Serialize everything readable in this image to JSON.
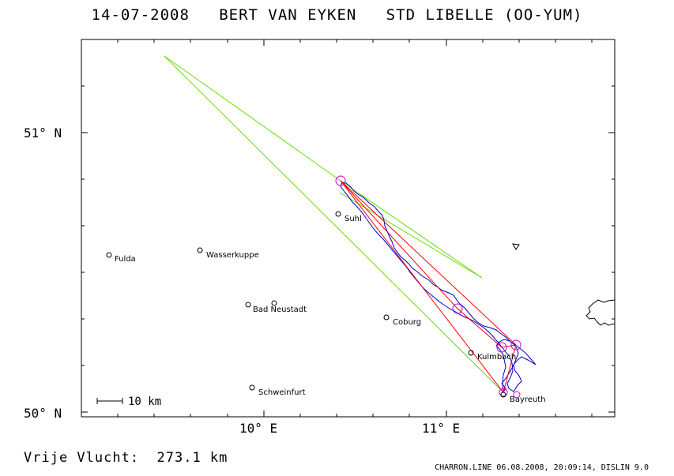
{
  "header": {
    "title": "14-07-2008   BERT VAN EYKEN   STD LIBELLE (OO-YUM)"
  },
  "map": {
    "lat_labels": [
      "51° N",
      "50° N"
    ],
    "lon_labels": [
      "10° E",
      "11° E"
    ],
    "scale_label": "10 km",
    "places": [
      {
        "name": "Fulda"
      },
      {
        "name": "Wasserkuppe"
      },
      {
        "name": "Suhl"
      },
      {
        "name": "Bad Neustadt"
      },
      {
        "name": "Coburg"
      },
      {
        "name": "Kulmbach"
      },
      {
        "name": "Schweinfurt"
      },
      {
        "name": "Bayreuth"
      }
    ],
    "colors": {
      "track": "#0000cc",
      "task": "#ff0000",
      "sectors": "#66dd00",
      "turnpoints": "#cc00cc"
    }
  },
  "footer": {
    "distance_text": "Vrije Vlucht:  273.1 km",
    "credit": "CHARRON.LINE 06.08.2008, 20:09:14, DISLIN 9.0"
  }
}
